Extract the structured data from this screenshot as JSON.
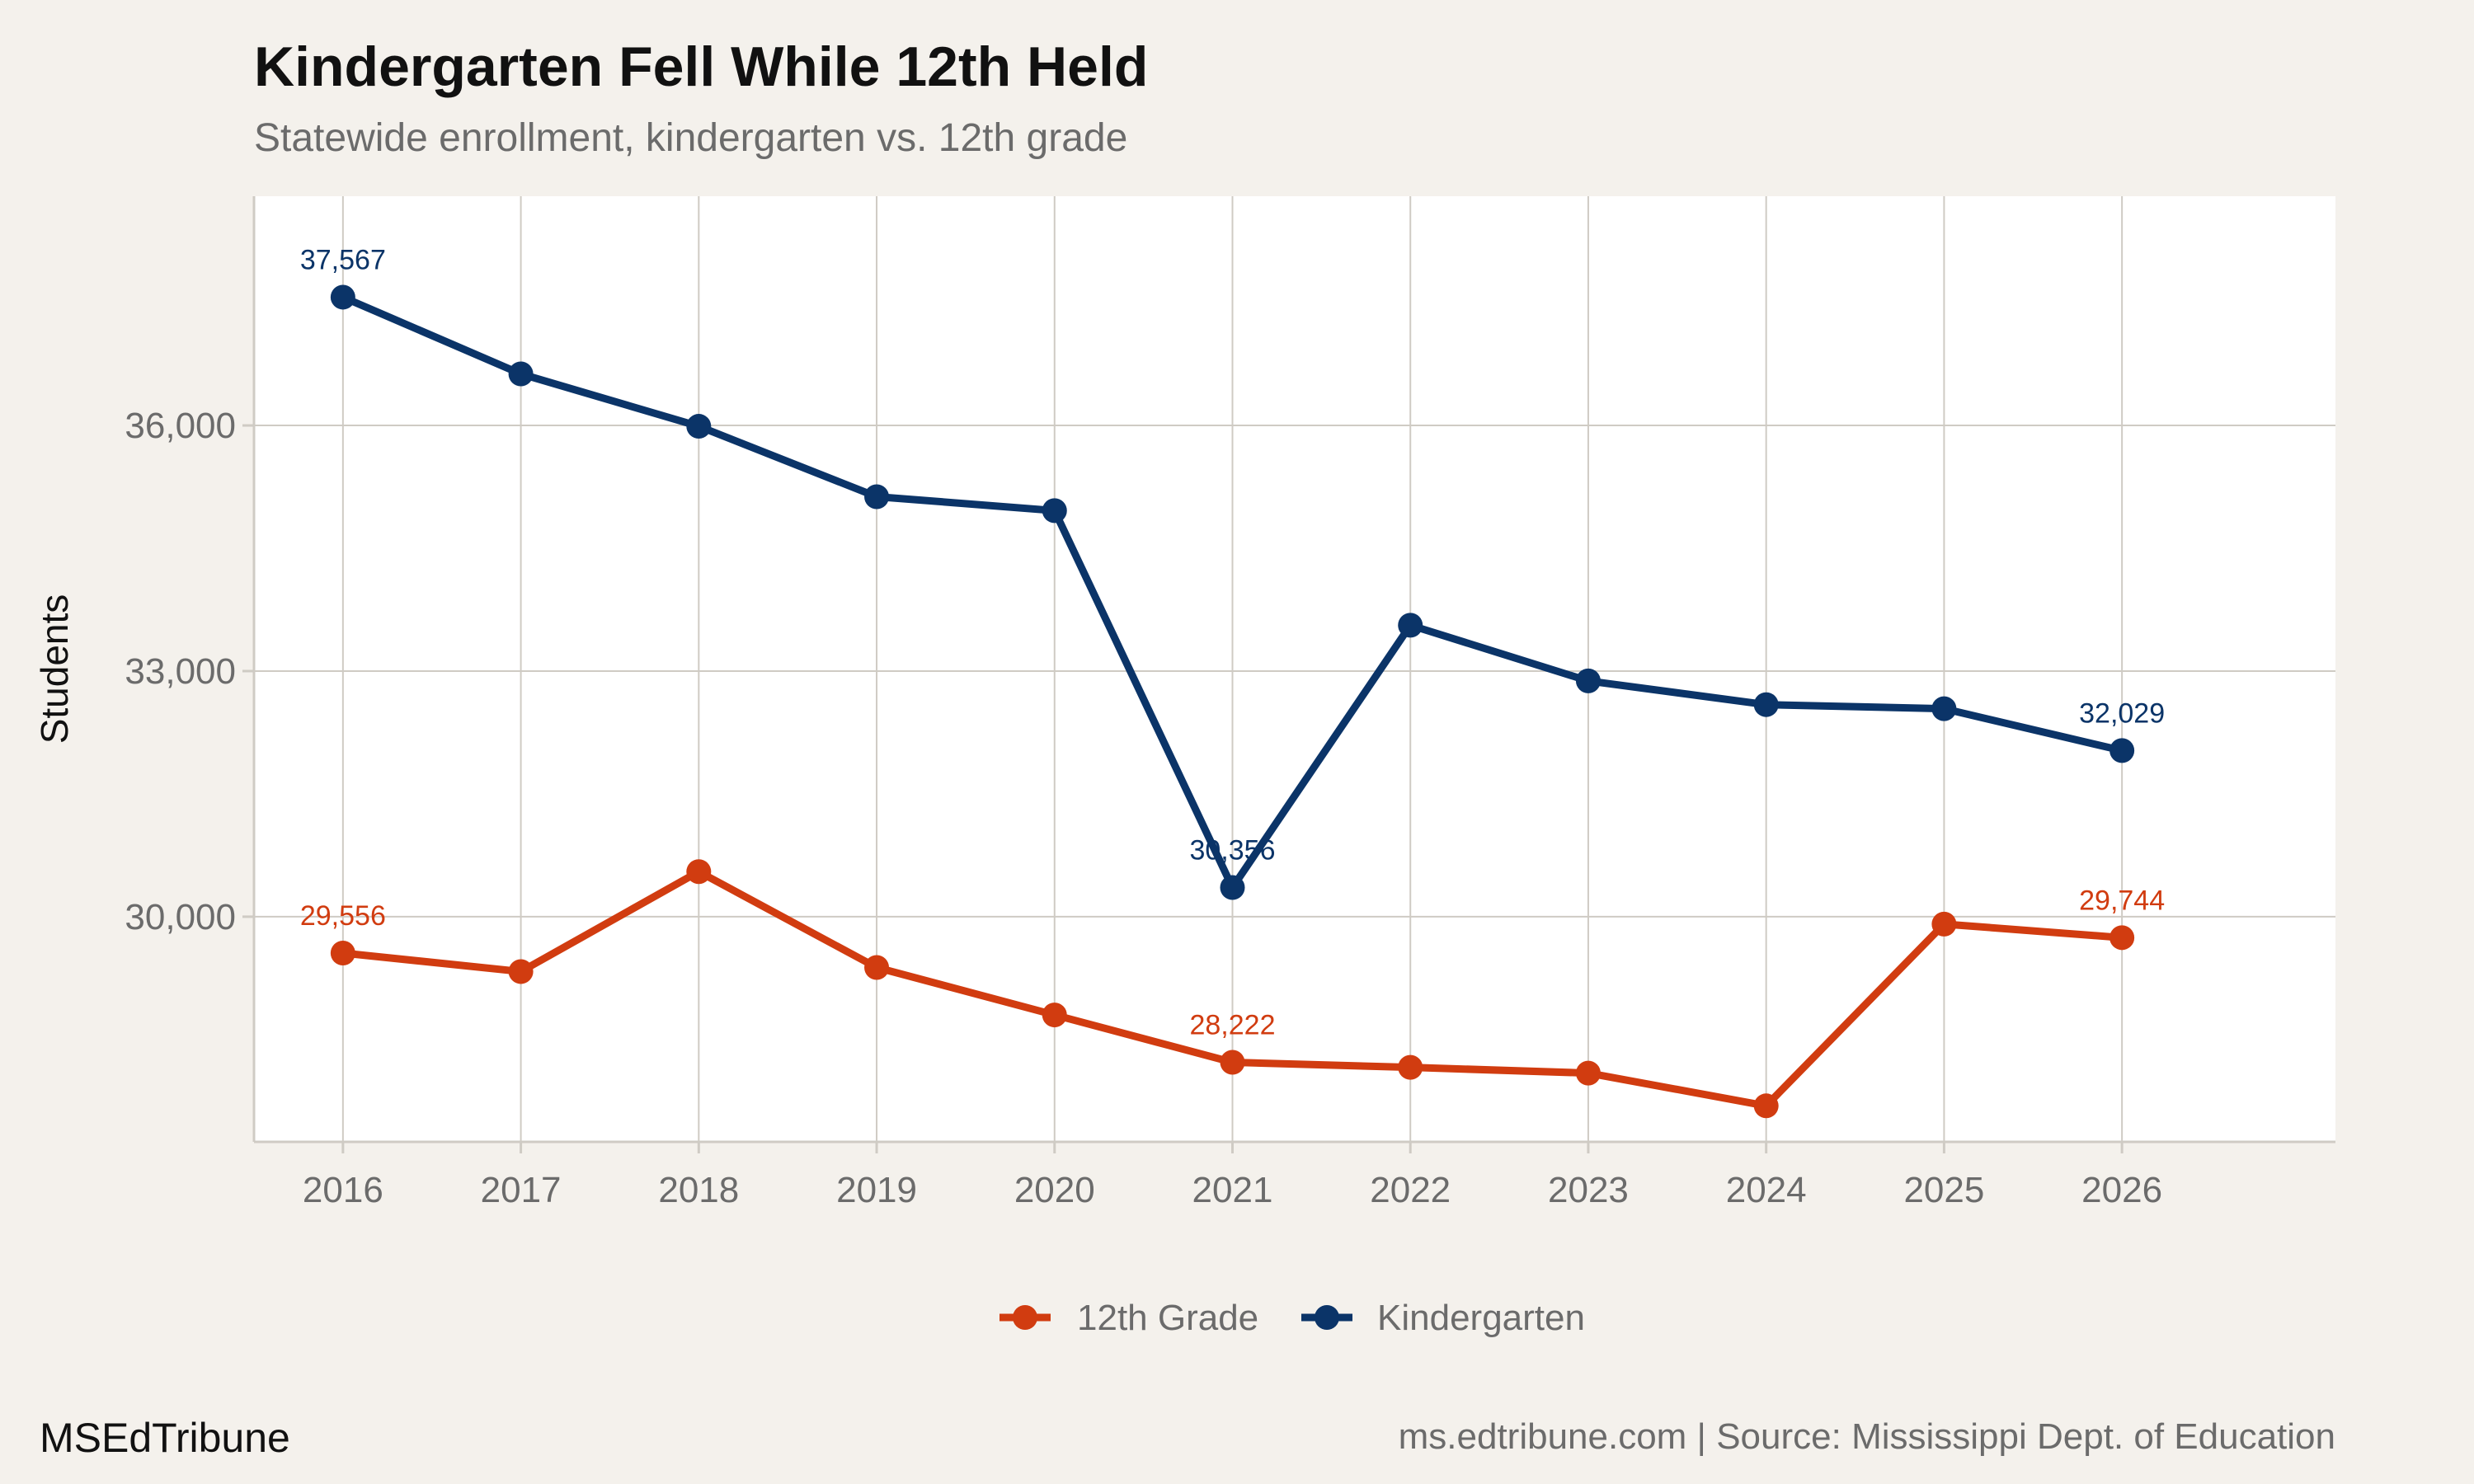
{
  "header": {
    "title": "Kindergarten Fell While 12th Held",
    "subtitle": "Statewide enrollment, kindergarten vs. 12th grade"
  },
  "footer": {
    "brand": "MSEdTribune",
    "source": "ms.edtribune.com | Source: Mississippi Dept. of Education"
  },
  "colors": {
    "background": "#f4f1ec",
    "panel": "#ffffff",
    "grid": "#cfcbc4",
    "kindergarten": "#0b3468",
    "twelfth": "#d13c10",
    "tick_text": "#6b6b6b"
  },
  "chart_data": {
    "type": "line",
    "title": "Kindergarten Fell While 12th Held",
    "subtitle": "Statewide enrollment, kindergarten vs. 12th grade",
    "xlabel": "",
    "ylabel": "Students",
    "x": [
      2016,
      2017,
      2018,
      2019,
      2020,
      2021,
      2022,
      2023,
      2024,
      2025,
      2026
    ],
    "xlim": [
      2015.5,
      2027.2
    ],
    "ylim": [
      27250,
      38800
    ],
    "y_ticks": [
      30000,
      33000,
      36000
    ],
    "y_tick_labels": [
      "30,000",
      "33,000",
      "36,000"
    ],
    "grid": true,
    "legend_position": "bottom",
    "series": [
      {
        "name": "12th Grade",
        "color": "#d13c10",
        "values": [
          29556,
          29330,
          30550,
          29380,
          28800,
          28222,
          28160,
          28090,
          27690,
          29910,
          29744
        ],
        "labels": [
          {
            "index": 0,
            "text": "29,556"
          },
          {
            "index": 5,
            "text": "28,222"
          },
          {
            "index": 10,
            "text": "29,744"
          }
        ]
      },
      {
        "name": "Kindergarten",
        "color": "#0b3468",
        "values": [
          37567,
          36630,
          35990,
          35130,
          34960,
          30356,
          33560,
          32880,
          32590,
          32540,
          32029
        ],
        "labels": [
          {
            "index": 0,
            "text": "37,567"
          },
          {
            "index": 5,
            "text": "30,356"
          },
          {
            "index": 10,
            "text": "32,029"
          }
        ]
      }
    ]
  }
}
